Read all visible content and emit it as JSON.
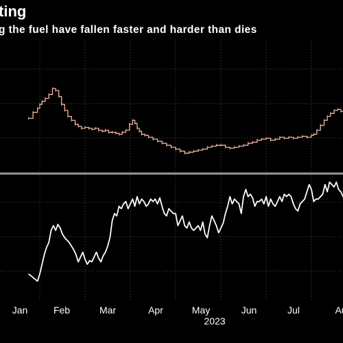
{
  "header": {
    "title": "ting",
    "subtitle": "g the fuel have fallen faster and harder than dies"
  },
  "colors": {
    "background": "#000000",
    "upper_series": "#f2b8a2",
    "lower_series": "#ffffff",
    "grid": "#555555",
    "text": "#ffffff",
    "divider": "#9a9a9a"
  },
  "chart_data": [
    {
      "type": "line",
      "panel": "upper",
      "title": "",
      "xlabel": "",
      "ylabel": "",
      "x_range_months": [
        -0.25,
        7.3
      ],
      "y_range": [
        0,
        100
      ],
      "grid": "dotted",
      "series": [
        {
          "name": "",
          "x": [
            -0.25,
            -0.15,
            -0.05,
            0.0,
            0.05,
            0.12,
            0.2,
            0.28,
            0.35,
            0.42,
            0.48,
            0.55,
            0.62,
            0.7,
            0.78,
            0.85,
            0.92,
            1.0,
            1.08,
            1.15,
            1.22,
            1.3,
            1.38,
            1.45,
            1.52,
            1.6,
            1.68,
            1.75,
            1.82,
            1.9,
            1.98,
            2.05,
            2.1,
            2.15,
            2.2,
            2.25,
            2.32,
            2.4,
            2.5,
            2.6,
            2.7,
            2.8,
            2.9,
            3.0,
            3.1,
            3.2,
            3.3,
            3.4,
            3.5,
            3.6,
            3.7,
            3.8,
            3.9,
            4.0,
            4.1,
            4.2,
            4.3,
            4.4,
            4.5,
            4.6,
            4.7,
            4.8,
            4.9,
            5.0,
            5.1,
            5.2,
            5.3,
            5.4,
            5.5,
            5.6,
            5.7,
            5.8,
            5.9,
            6.0,
            6.05,
            6.12,
            6.2,
            6.28,
            6.35,
            6.42,
            6.5,
            6.58,
            6.65,
            6.72,
            6.8,
            6.88,
            6.95,
            7.02,
            7.1,
            7.2,
            7.3
          ],
          "values": [
            50,
            56,
            60,
            64,
            67,
            70,
            74,
            80,
            78,
            72,
            64,
            58,
            52,
            48,
            44,
            42,
            40,
            41,
            40,
            39,
            40,
            38,
            37,
            38,
            36,
            36,
            35,
            34,
            36,
            38,
            44,
            48,
            45,
            40,
            37,
            34,
            33,
            31,
            29,
            27,
            25,
            23,
            21,
            19,
            17,
            15,
            16,
            17,
            18,
            19,
            21,
            22,
            23,
            23,
            21,
            20,
            21,
            22,
            23,
            25,
            26,
            28,
            29,
            30,
            28,
            29,
            31,
            30,
            31,
            30,
            31,
            32,
            31,
            33,
            34,
            38,
            43,
            48,
            52,
            55,
            58,
            59,
            57,
            55,
            57,
            59,
            60,
            58,
            56,
            55,
            54
          ]
        }
      ]
    },
    {
      "type": "line",
      "panel": "lower",
      "title": "",
      "xlabel": "",
      "ylabel": "",
      "x_range_months": [
        -0.25,
        7.3
      ],
      "y_range": [
        0,
        100
      ],
      "grid": "dotted",
      "x_tick_labels": [
        "Jan",
        "Feb",
        "Mar",
        "Apr",
        "May",
        "Jun",
        "Jul",
        "Au"
      ],
      "x_year_label": "2023",
      "series": [
        {
          "name": "",
          "x": [
            -0.25,
            -0.18,
            -0.12,
            -0.05,
            0.0,
            0.05,
            0.1,
            0.15,
            0.2,
            0.25,
            0.3,
            0.35,
            0.4,
            0.45,
            0.5,
            0.55,
            0.6,
            0.65,
            0.7,
            0.75,
            0.8,
            0.85,
            0.9,
            0.95,
            1.0,
            1.05,
            1.1,
            1.15,
            1.2,
            1.25,
            1.3,
            1.35,
            1.4,
            1.45,
            1.5,
            1.55,
            1.6,
            1.65,
            1.7,
            1.75,
            1.8,
            1.85,
            1.9,
            1.95,
            2.0,
            2.05,
            2.1,
            2.15,
            2.2,
            2.25,
            2.3,
            2.35,
            2.4,
            2.45,
            2.5,
            2.55,
            2.6,
            2.65,
            2.7,
            2.75,
            2.8,
            2.85,
            2.9,
            2.95,
            3.0,
            3.05,
            3.1,
            3.15,
            3.2,
            3.25,
            3.3,
            3.35,
            3.4,
            3.45,
            3.5,
            3.55,
            3.6,
            3.65,
            3.7,
            3.75,
            3.8,
            3.85,
            3.9,
            3.95,
            4.0,
            4.05,
            4.1,
            4.15,
            4.2,
            4.25,
            4.3,
            4.35,
            4.4,
            4.45,
            4.5,
            4.55,
            4.6,
            4.65,
            4.7,
            4.75,
            4.8,
            4.85,
            4.9,
            4.95,
            5.0,
            5.05,
            5.1,
            5.15,
            5.2,
            5.25,
            5.3,
            5.35,
            5.4,
            5.45,
            5.5,
            5.55,
            5.6,
            5.65,
            5.7,
            5.75,
            5.8,
            5.85,
            5.9,
            5.95,
            6.0,
            6.05,
            6.1,
            6.15,
            6.2,
            6.25,
            6.3,
            6.35,
            6.4,
            6.45,
            6.5,
            6.55,
            6.6,
            6.65,
            6.7,
            6.75,
            6.8,
            6.85,
            6.9,
            6.95,
            7.0,
            7.05,
            7.1,
            7.15,
            7.2,
            7.25,
            7.3
          ],
          "values": [
            22,
            20,
            18,
            16,
            22,
            30,
            38,
            44,
            48,
            58,
            62,
            58,
            63,
            60,
            55,
            52,
            50,
            48,
            45,
            42,
            38,
            32,
            36,
            40,
            34,
            30,
            33,
            32,
            36,
            40,
            35,
            32,
            37,
            40,
            45,
            52,
            66,
            72,
            70,
            78,
            76,
            80,
            82,
            76,
            80,
            84,
            78,
            86,
            80,
            84,
            82,
            78,
            80,
            84,
            82,
            84,
            80,
            85,
            78,
            72,
            70,
            76,
            74,
            72,
            72,
            62,
            66,
            70,
            62,
            60,
            65,
            60,
            58,
            60,
            62,
            58,
            65,
            55,
            52,
            62,
            70,
            66,
            62,
            56,
            60,
            64,
            72,
            78,
            86,
            80,
            84,
            82,
            80,
            72,
            86,
            92,
            86,
            88,
            85,
            78,
            82,
            82,
            84,
            80,
            86,
            78,
            84,
            80,
            78,
            82,
            86,
            82,
            88,
            86,
            88,
            86,
            80,
            76,
            74,
            80,
            82,
            84,
            90,
            96,
            92,
            82,
            84,
            84,
            86,
            88,
            96,
            90,
            98,
            96,
            94,
            98,
            92,
            90,
            86,
            80,
            82,
            96,
            98,
            92,
            88,
            84,
            88,
            90,
            86,
            82,
            80
          ]
        }
      ]
    }
  ]
}
